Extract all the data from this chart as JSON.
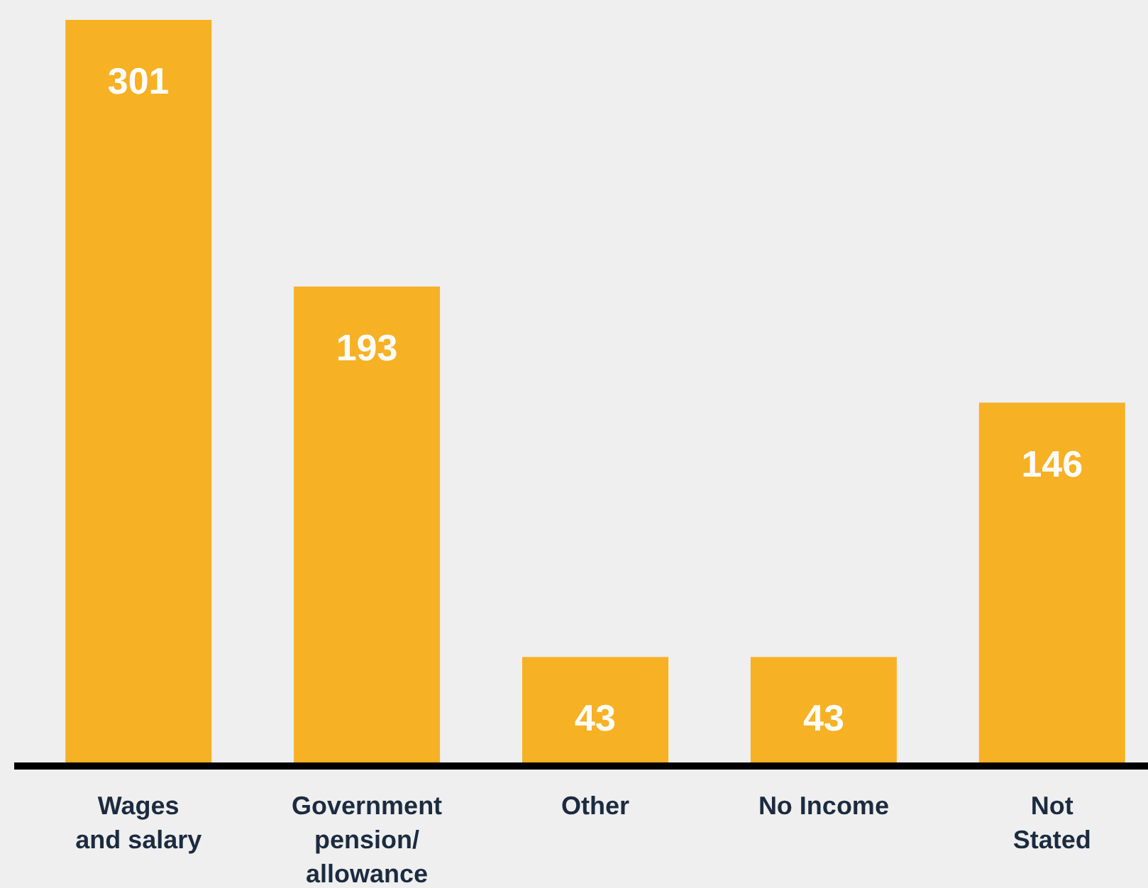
{
  "chart_data": {
    "type": "bar",
    "categories": [
      "Wages\nand salary",
      "Government\npension/\nallowance",
      "Other",
      "No Income",
      "Not\nStated"
    ],
    "values": [
      301,
      193,
      43,
      43,
      146
    ],
    "color": "#f7b125",
    "data_labels": true
  }
}
